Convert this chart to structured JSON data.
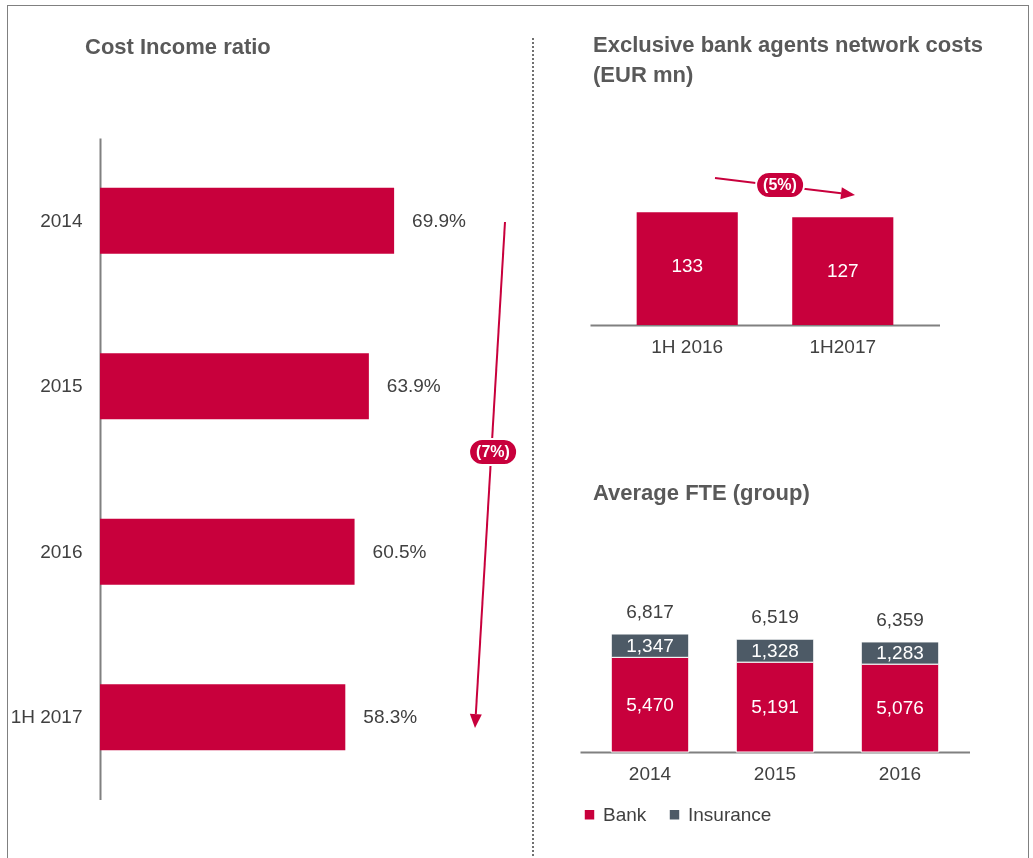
{
  "chart_data": [
    {
      "type": "bar",
      "title": "Cost Income ratio",
      "orientation": "horizontal",
      "categories": [
        "2014",
        "2015",
        "2016",
        "1H 2017"
      ],
      "values": [
        69.9,
        63.9,
        60.5,
        58.3
      ],
      "value_labels": [
        "69.9%",
        "63.9%",
        "60.5%",
        "58.3%"
      ],
      "color": "#c8003c",
      "tick_labels": "y",
      "grid": false,
      "annotations": [
        "(7%)"
      ]
    },
    {
      "type": "bar",
      "title": "Exclusive bank agents network costs (EUR mn)",
      "categories": [
        "1H 2016",
        "1H2017"
      ],
      "values": [
        133,
        127
      ],
      "color": "#c8003c",
      "data_labels": true,
      "tick_labels": "x",
      "grid": false,
      "annotations": [
        "(5%)"
      ]
    },
    {
      "type": "bar",
      "title": "Average FTE (group)",
      "categories": [
        "2014",
        "2015",
        "2016"
      ],
      "stacked": true,
      "series": [
        {
          "name": "Bank",
          "color": "#c8003c",
          "values": [
            5470,
            5191,
            5076
          ],
          "value_labels": [
            "5,470",
            "5,191",
            "5,076"
          ]
        },
        {
          "name": "Insurance",
          "color": "#4d5a66",
          "values": [
            1347,
            1328,
            1283
          ],
          "value_labels": [
            "1,347",
            "1,328",
            "1,283"
          ]
        }
      ],
      "totals": [
        "6,817",
        "6,519",
        "6,359"
      ],
      "tick_labels": "x",
      "grid": false,
      "legend": "bottom"
    }
  ]
}
